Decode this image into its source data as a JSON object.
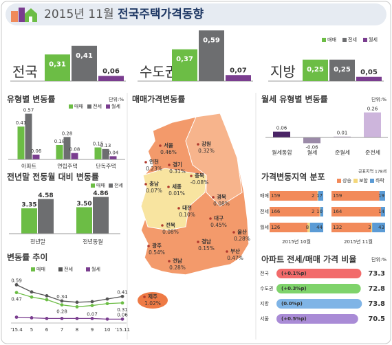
{
  "header": {
    "title_date": "2015년 11월",
    "title_main": "전국주택가격동향"
  },
  "chart_data": [
    {
      "type": "bar",
      "categories": [
        "전국",
        "수도권",
        "지방"
      ],
      "ylim": [
        0,
        0.6
      ],
      "series": [
        {
          "name": "매매",
          "color": "#6cbd45",
          "values": [
            0.31,
            0.37,
            0.25
          ],
          "value_labels": [
            "0,31",
            "0,37",
            "0,25"
          ]
        },
        {
          "name": "전세",
          "color": "#6d6e70",
          "values": [
            0.41,
            0.59,
            0.25
          ],
          "value_labels": [
            "0,41",
            "0,59",
            "0,25"
          ]
        },
        {
          "name": "월세",
          "color": "#7a3d8f",
          "values": [
            0.06,
            0.07,
            0.05
          ],
          "value_labels": [
            "0,06",
            "0,07",
            "0,05"
          ]
        }
      ]
    },
    {
      "type": "bar",
      "title": "유형별 변동률",
      "unit": "단위:%",
      "categories": [
        "아파트",
        "연립주택",
        "단독주택"
      ],
      "ylim": [
        0,
        0.6
      ],
      "series": [
        {
          "name": "매매",
          "color": "#6cbd45",
          "values": [
            0.41,
            0.18,
            0.15
          ]
        },
        {
          "name": "전세",
          "color": "#6d6e70",
          "values": [
            0.57,
            0.28,
            0.13
          ]
        },
        {
          "name": "월세",
          "color": "#7a3d8f",
          "values": [
            0.06,
            0.08,
            0.04
          ]
        }
      ]
    },
    {
      "type": "bar",
      "title": "전년말 전동월 대비 변동률",
      "categories": [
        "전년말",
        "전년동월"
      ],
      "ylim": [
        0,
        5
      ],
      "series": [
        {
          "name": "매매",
          "color": "#6cbd45",
          "values": [
            3.35,
            3.5
          ],
          "value_labels": [
            "3.35",
            "3.50"
          ]
        },
        {
          "name": "전세",
          "color": "#6d6e70",
          "values": [
            4.58,
            4.86
          ]
        }
      ]
    },
    {
      "type": "line",
      "title": "변동률 추이",
      "categories": [
        "'15.4",
        "5",
        "6",
        "7",
        "8",
        "9",
        "10",
        "'15.11"
      ],
      "ylim": [
        0,
        0.7
      ],
      "series": [
        {
          "name": "매매",
          "color": "#6cbd45",
          "values": [
            0.47,
            0.4,
            0.36,
            0.28,
            0.25,
            0.27,
            0.3,
            0.31
          ],
          "value_labels": [
            "0.47",
            null,
            null,
            "0.28",
            null,
            null,
            null,
            "0.31"
          ]
        },
        {
          "name": "전세",
          "color": "#555555",
          "values": [
            0.59,
            0.48,
            0.42,
            0.34,
            0.32,
            0.33,
            0.37,
            0.41
          ],
          "value_labels": [
            "0.59",
            null,
            null,
            "0.34",
            null,
            null,
            null,
            "0.41"
          ]
        },
        {
          "name": "월세",
          "color": "#7a3d8f",
          "values": [
            0.09,
            0.08,
            0.07,
            0.07,
            0.07,
            0.07,
            0.06,
            0.06
          ],
          "value_labels": [
            null,
            null,
            null,
            null,
            null,
            "0.07",
            null,
            "0.06"
          ]
        }
      ]
    },
    {
      "type": "map",
      "title": "매매가격변동률",
      "regions": [
        {
          "name": "서울",
          "value": 0.46,
          "value_label": "0.46%"
        },
        {
          "name": "인천",
          "value": 0.23,
          "value_label": "0.23%"
        },
        {
          "name": "경기",
          "value": 0.31,
          "value_label": "0.31%"
        },
        {
          "name": "강원",
          "value": 0.32,
          "value_label": "0.32%"
        },
        {
          "name": "충북",
          "value": -0.08,
          "value_label": "-0.08%"
        },
        {
          "name": "충남",
          "value": 0.07,
          "value_label": "0.07%"
        },
        {
          "name": "세종",
          "value": 0.01,
          "value_label": "0.01%"
        },
        {
          "name": "대전",
          "value": 0.1,
          "value_label": "0.10%"
        },
        {
          "name": "경북",
          "value": 0.08,
          "value_label": "0.08%"
        },
        {
          "name": "전북",
          "value": 0.08,
          "value_label": "0.08%"
        },
        {
          "name": "대구",
          "value": 0.45,
          "value_label": "0.45%"
        },
        {
          "name": "울산",
          "value": 0.28,
          "value_label": "0.28%"
        },
        {
          "name": "경남",
          "value": 0.15,
          "value_label": "0.15%"
        },
        {
          "name": "부산",
          "value": 0.47,
          "value_label": "0.47%"
        },
        {
          "name": "광주",
          "value": 0.54,
          "value_label": "0.54%"
        },
        {
          "name": "전남",
          "value": 0.28,
          "value_label": "0.28%"
        },
        {
          "name": "제주",
          "value": 1.02,
          "value_label": "1.02%"
        }
      ]
    },
    {
      "type": "bar",
      "title": "월세 유형별 변동률",
      "unit": "단위:%",
      "categories": [
        "월세통합",
        "월세",
        "준월세",
        "준전세"
      ],
      "ylim": [
        -0.1,
        0.3
      ],
      "values": [
        0.06,
        -0.06,
        0.01,
        0.26
      ],
      "colors": [
        "#4a2466",
        "#9b8aa8",
        "#cbbfd4",
        "#cdb5dc"
      ]
    },
    {
      "type": "stacked_bar",
      "title": "가격변동지역 분포",
      "subtitle": "공표지역 178개",
      "categories": [
        "매매",
        "전세",
        "월세"
      ],
      "panels": [
        "2015년 10월",
        "2015년 11월"
      ],
      "series": [
        {
          "name": "상승",
          "color": "#f28a5a",
          "values": [
            [
              159,
              166,
              126
            ],
            [
              159,
              164,
              132
            ]
          ]
        },
        {
          "name": "보합",
          "color": "#f4d77a",
          "values": [
            [
              2,
              2,
              8
            ],
            [
              0,
              0,
              3
            ]
          ]
        },
        {
          "name": "하락",
          "color": "#5b9bd5",
          "values": [
            [
              17,
              10,
              44
            ],
            [
              19,
              14,
              43
            ]
          ]
        }
      ]
    },
    {
      "type": "hbar",
      "title": "아파트 전세/매매 가격 비율",
      "unit": "단위:%",
      "categories": [
        "전국",
        "수도권",
        "지방",
        "서울"
      ],
      "values": [
        73.3,
        72.8,
        73.8,
        70.5
      ],
      "xlim": [
        0,
        76
      ],
      "annotations": [
        "(+0.1%p)",
        "(+0.3%p)",
        "(0.0%p)",
        "(+0.5%p)"
      ],
      "colors": [
        "#f26b6b",
        "#7fd36b",
        "#7fb4e6",
        "#a98bd6"
      ]
    }
  ]
}
